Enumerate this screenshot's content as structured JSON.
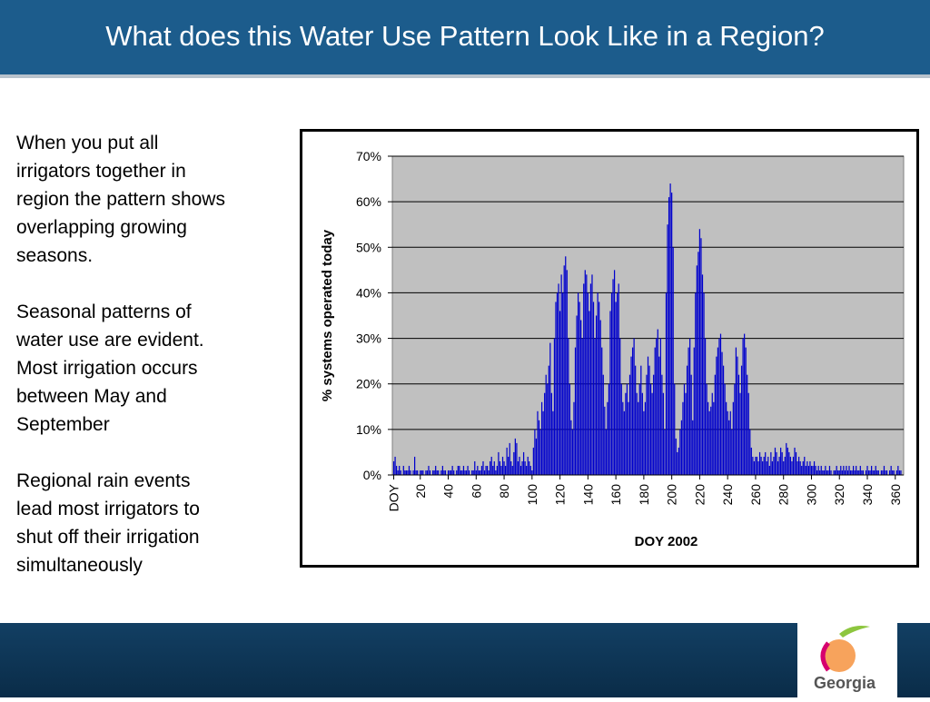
{
  "header": {
    "title": "What does this Water Use Pattern Look Like in a Region?"
  },
  "paragraphs": [
    [
      "When you put all",
      "irrigators together in",
      "region the pattern shows",
      "overlapping growing",
      "seasons."
    ],
    [
      "Seasonal patterns of",
      "water use are evident.",
      "Most irrigation occurs",
      "between May and",
      "September"
    ],
    [
      "Regional rain events",
      "lead most irrigators to",
      "shut off their  irrigation",
      "simultaneously"
    ]
  ],
  "logo": {
    "text": "Georgia"
  },
  "chart_data": {
    "type": "bar",
    "color": "#0000cc",
    "grid": true,
    "x_label": "DOY 2002",
    "y_label": "% systems operated today",
    "xlim": [
      0,
      366
    ],
    "ylim": [
      0,
      70
    ],
    "xticks": [
      {
        "value": 1,
        "label": "DOY"
      },
      20,
      40,
      60,
      80,
      100,
      120,
      140,
      160,
      180,
      200,
      220,
      240,
      260,
      280,
      300,
      320,
      340,
      360
    ],
    "yticks": [
      {
        "value": 0,
        "label": "0%"
      },
      {
        "value": 10,
        "label": "10%"
      },
      {
        "value": 20,
        "label": "20%"
      },
      {
        "value": 30,
        "label": "30%"
      },
      {
        "value": 40,
        "label": "40%"
      },
      {
        "value": 50,
        "label": "50%"
      },
      {
        "value": 60,
        "label": "60%"
      },
      {
        "value": 70,
        "label": "70%"
      }
    ],
    "x": [
      1,
      2,
      3,
      4,
      5,
      6,
      7,
      8,
      9,
      10,
      11,
      12,
      13,
      14,
      15,
      16,
      17,
      18,
      19,
      20,
      21,
      22,
      23,
      24,
      25,
      26,
      27,
      28,
      29,
      30,
      31,
      32,
      33,
      34,
      35,
      36,
      37,
      38,
      39,
      40,
      41,
      42,
      43,
      44,
      45,
      46,
      47,
      48,
      49,
      50,
      51,
      52,
      53,
      54,
      55,
      56,
      57,
      58,
      59,
      60,
      61,
      62,
      63,
      64,
      65,
      66,
      67,
      68,
      69,
      70,
      71,
      72,
      73,
      74,
      75,
      76,
      77,
      78,
      79,
      80,
      81,
      82,
      83,
      84,
      85,
      86,
      87,
      88,
      89,
      90,
      91,
      92,
      93,
      94,
      95,
      96,
      97,
      98,
      99,
      100,
      101,
      102,
      103,
      104,
      105,
      106,
      107,
      108,
      109,
      110,
      111,
      112,
      113,
      114,
      115,
      116,
      117,
      118,
      119,
      120,
      121,
      122,
      123,
      124,
      125,
      126,
      127,
      128,
      129,
      130,
      131,
      132,
      133,
      134,
      135,
      136,
      137,
      138,
      139,
      140,
      141,
      142,
      143,
      144,
      145,
      146,
      147,
      148,
      149,
      150,
      151,
      152,
      153,
      154,
      155,
      156,
      157,
      158,
      159,
      160,
      161,
      162,
      163,
      164,
      165,
      166,
      167,
      168,
      169,
      170,
      171,
      172,
      173,
      174,
      175,
      176,
      177,
      178,
      179,
      180,
      181,
      182,
      183,
      184,
      185,
      186,
      187,
      188,
      189,
      190,
      191,
      192,
      193,
      194,
      195,
      196,
      197,
      198,
      199,
      200,
      201,
      202,
      203,
      204,
      205,
      206,
      207,
      208,
      209,
      210,
      211,
      212,
      213,
      214,
      215,
      216,
      217,
      218,
      219,
      220,
      221,
      222,
      223,
      224,
      225,
      226,
      227,
      228,
      229,
      230,
      231,
      232,
      233,
      234,
      235,
      236,
      237,
      238,
      239,
      240,
      241,
      242,
      243,
      244,
      245,
      246,
      247,
      248,
      249,
      250,
      251,
      252,
      253,
      254,
      255,
      256,
      257,
      258,
      259,
      260,
      261,
      262,
      263,
      264,
      265,
      266,
      267,
      268,
      269,
      270,
      271,
      272,
      273,
      274,
      275,
      276,
      277,
      278,
      279,
      280,
      281,
      282,
      283,
      284,
      285,
      286,
      287,
      288,
      289,
      290,
      291,
      292,
      293,
      294,
      295,
      296,
      297,
      298,
      299,
      300,
      301,
      302,
      303,
      304,
      305,
      306,
      307,
      308,
      309,
      310,
      311,
      312,
      313,
      314,
      315,
      316,
      317,
      318,
      319,
      320,
      321,
      322,
      323,
      324,
      325,
      326,
      327,
      328,
      329,
      330,
      331,
      332,
      333,
      334,
      335,
      336,
      337,
      338,
      339,
      340,
      341,
      342,
      343,
      344,
      345,
      346,
      347,
      348,
      349,
      350,
      351,
      352,
      353,
      354,
      355,
      356,
      357,
      358,
      359,
      360,
      361,
      362,
      363,
      364,
      365
    ],
    "values": [
      3,
      4,
      2,
      1,
      2,
      1,
      0,
      2,
      1,
      1,
      1,
      2,
      1,
      0,
      1,
      4,
      1,
      1,
      0,
      1,
      1,
      1,
      0,
      1,
      1,
      2,
      1,
      0,
      1,
      1,
      2,
      1,
      1,
      0,
      1,
      2,
      1,
      1,
      0,
      1,
      1,
      1,
      2,
      1,
      0,
      1,
      2,
      2,
      1,
      1,
      2,
      1,
      1,
      2,
      1,
      0,
      1,
      1,
      3,
      1,
      2,
      1,
      1,
      2,
      3,
      1,
      2,
      2,
      1,
      3,
      4,
      2,
      3,
      1,
      2,
      5,
      3,
      2,
      4,
      3,
      2,
      6,
      4,
      7,
      3,
      2,
      5,
      8,
      7,
      3,
      4,
      2,
      3,
      5,
      3,
      2,
      4,
      3,
      2,
      1,
      6,
      10,
      8,
      14,
      12,
      10,
      16,
      14,
      18,
      22,
      20,
      24,
      29,
      18,
      14,
      30,
      38,
      40,
      42,
      36,
      44,
      40,
      46,
      48,
      45,
      30,
      20,
      12,
      10,
      16,
      28,
      35,
      40,
      38,
      34,
      30,
      42,
      45,
      44,
      40,
      36,
      42,
      44,
      38,
      30,
      35,
      40,
      38,
      34,
      28,
      22,
      15,
      10,
      16,
      20,
      36,
      40,
      43,
      45,
      38,
      40,
      42,
      30,
      20,
      16,
      14,
      18,
      20,
      16,
      22,
      26,
      28,
      30,
      24,
      18,
      16,
      20,
      24,
      18,
      14,
      16,
      22,
      26,
      24,
      20,
      18,
      22,
      28,
      30,
      32,
      26,
      30,
      22,
      18,
      10,
      40,
      55,
      61,
      64,
      62,
      50,
      20,
      8,
      5,
      6,
      10,
      12,
      16,
      20,
      18,
      24,
      28,
      30,
      22,
      12,
      28,
      40,
      46,
      49,
      54,
      52,
      44,
      40,
      30,
      20,
      16,
      14,
      15,
      18,
      16,
      22,
      26,
      28,
      30,
      31,
      27,
      24,
      20,
      16,
      14,
      12,
      14,
      10,
      16,
      20,
      28,
      26,
      22,
      18,
      24,
      30,
      31,
      28,
      22,
      18,
      10,
      6,
      4,
      3,
      4,
      4,
      3,
      5,
      4,
      3,
      4,
      5,
      3,
      4,
      2,
      5,
      3,
      4,
      6,
      5,
      3,
      4,
      6,
      5,
      3,
      4,
      7,
      6,
      5,
      4,
      3,
      4,
      6,
      5,
      3,
      4,
      3,
      2,
      3,
      4,
      2,
      3,
      2,
      3,
      2,
      2,
      3,
      2,
      1,
      2,
      1,
      2,
      1,
      1,
      2,
      1,
      1,
      2,
      1,
      0,
      1,
      1,
      2,
      1,
      1,
      2,
      1,
      2,
      1,
      2,
      1,
      2,
      1,
      1,
      2,
      1,
      2,
      1,
      1,
      2,
      1,
      1,
      0,
      1,
      2,
      1,
      1,
      2,
      1,
      1,
      2,
      1,
      1,
      0,
      1,
      1,
      2,
      1,
      1,
      0,
      1,
      2,
      1,
      1,
      0,
      1,
      2,
      1,
      1,
      0
    ]
  }
}
